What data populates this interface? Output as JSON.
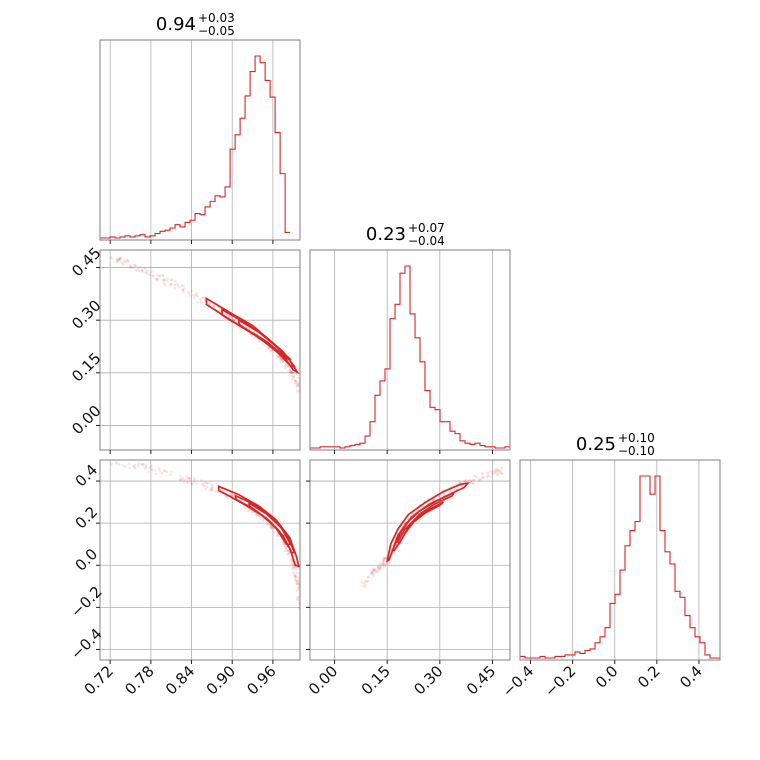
{
  "colors": {
    "series": "#d62728",
    "grid": "#b0b0b0",
    "frame": "#808080"
  },
  "chart_data": {
    "type": "corner",
    "grid": true,
    "parameters": [
      {
        "title": {
          "value": "0.94",
          "plus": "+0.03",
          "minus": "−0.05"
        },
        "range": [
          0.705,
          1.0
        ],
        "ticks": [
          0.72,
          0.78,
          0.84,
          0.9,
          0.96
        ],
        "tick_labels": [
          "0.72",
          "0.78",
          "0.84",
          "0.90",
          "0.96"
        ],
        "hist": {
          "start": 0.705,
          "bin_width": 0.00738,
          "counts": [
            0,
            0,
            1,
            0,
            1,
            2,
            1,
            2,
            3,
            1,
            2,
            4,
            6,
            7,
            9,
            12,
            10,
            14,
            16,
            22,
            21,
            28,
            33,
            38,
            37,
            46,
            80,
            93,
            108,
            128,
            150,
            164,
            158,
            142,
            127,
            95,
            58,
            5
          ]
        }
      },
      {
        "title": {
          "value": "0.23",
          "plus": "+0.07",
          "minus": "−0.04"
        },
        "range": [
          -0.07,
          0.5
        ],
        "ticks": [
          0.0,
          0.15,
          0.3,
          0.45
        ],
        "tick_labels": [
          "0.00",
          "0.15",
          "0.30",
          "0.45"
        ],
        "hist": {
          "start": -0.07,
          "bin_width": 0.01425,
          "counts": [
            0,
            0,
            1,
            1,
            1,
            1,
            0,
            1,
            2,
            3,
            4,
            10,
            22,
            44,
            56,
            66,
            108,
            120,
            146,
            152,
            112,
            92,
            72,
            48,
            34,
            32,
            22,
            22,
            14,
            12,
            6,
            4,
            3,
            4,
            2,
            1,
            1,
            0,
            0,
            1
          ]
        }
      },
      {
        "title": {
          "value": "0.25",
          "plus": "+0.10",
          "minus": "−0.10"
        },
        "range": [
          -0.45,
          0.5
        ],
        "ticks": [
          -0.4,
          -0.2,
          0.0,
          0.2,
          0.4
        ],
        "tick_labels": [
          "−0.4",
          "−0.2",
          "0.0",
          "0.2",
          "0.4"
        ],
        "hist": {
          "start": -0.45,
          "bin_width": 0.02375,
          "counts": [
            1,
            0,
            0,
            0,
            1,
            0,
            0,
            1,
            1,
            2,
            2,
            4,
            3,
            5,
            6,
            10,
            14,
            20,
            36,
            42,
            58,
            74,
            84,
            90,
            120,
            120,
            108,
            120,
            84,
            70,
            62,
            44,
            40,
            28,
            20,
            14,
            10,
            2,
            0,
            0
          ]
        }
      }
    ],
    "joint": [
      {
        "x_param": 0,
        "y_param": 1,
        "ridge": [
          [
            0.72,
            0.48
          ],
          [
            0.76,
            0.45
          ],
          [
            0.8,
            0.415
          ],
          [
            0.84,
            0.375
          ],
          [
            0.88,
            0.33
          ],
          [
            0.9,
            0.305
          ],
          [
            0.92,
            0.28
          ],
          [
            0.94,
            0.25
          ],
          [
            0.96,
            0.22
          ],
          [
            0.975,
            0.19
          ],
          [
            0.99,
            0.15
          ],
          [
            1.0,
            0.1
          ]
        ],
        "contours": [
          [
            [
              0.862,
              0.362
            ],
            [
              0.9,
              0.318
            ],
            [
              0.93,
              0.285
            ],
            [
              0.96,
              0.235
            ],
            [
              0.985,
              0.185
            ],
            [
              0.996,
              0.152
            ],
            [
              0.99,
              0.158
            ],
            [
              0.975,
              0.2
            ],
            [
              0.95,
              0.24
            ],
            [
              0.92,
              0.275
            ],
            [
              0.9,
              0.297
            ],
            [
              0.862,
              0.345
            ]
          ],
          [
            [
              0.885,
              0.33
            ],
            [
              0.92,
              0.292
            ],
            [
              0.95,
              0.252
            ],
            [
              0.975,
              0.21
            ],
            [
              0.993,
              0.165
            ],
            [
              0.985,
              0.172
            ],
            [
              0.965,
              0.212
            ],
            [
              0.94,
              0.25
            ],
            [
              0.91,
              0.285
            ],
            [
              0.885,
              0.315
            ]
          ],
          [
            [
              0.91,
              0.3
            ],
            [
              0.94,
              0.265
            ],
            [
              0.965,
              0.225
            ],
            [
              0.985,
              0.19
            ],
            [
              0.978,
              0.19
            ],
            [
              0.955,
              0.228
            ],
            [
              0.93,
              0.262
            ],
            [
              0.91,
              0.288
            ]
          ]
        ]
      },
      {
        "x_param": 0,
        "y_param": 2,
        "ridge": [
          [
            0.72,
            0.5
          ],
          [
            0.78,
            0.46
          ],
          [
            0.84,
            0.4
          ],
          [
            0.88,
            0.36
          ],
          [
            0.91,
            0.31
          ],
          [
            0.94,
            0.24
          ],
          [
            0.96,
            0.18
          ],
          [
            0.98,
            0.1
          ],
          [
            0.99,
            0.02
          ],
          [
            0.997,
            -0.08
          ],
          [
            1.0,
            -0.2
          ]
        ],
        "contours": [
          [
            [
              0.88,
              0.375
            ],
            [
              0.91,
              0.335
            ],
            [
              0.94,
              0.28
            ],
            [
              0.965,
              0.215
            ],
            [
              0.985,
              0.13
            ],
            [
              0.995,
              0.04
            ],
            [
              0.998,
              -0.005
            ],
            [
              0.993,
              0.0
            ],
            [
              0.985,
              0.08
            ],
            [
              0.97,
              0.16
            ],
            [
              0.95,
              0.225
            ],
            [
              0.92,
              0.285
            ],
            [
              0.895,
              0.33
            ],
            [
              0.88,
              0.355
            ]
          ],
          [
            [
              0.905,
              0.33
            ],
            [
              0.935,
              0.285
            ],
            [
              0.96,
              0.22
            ],
            [
              0.98,
              0.15
            ],
            [
              0.992,
              0.06
            ],
            [
              0.988,
              0.06
            ],
            [
              0.975,
              0.14
            ],
            [
              0.955,
              0.21
            ],
            [
              0.93,
              0.27
            ],
            [
              0.905,
              0.315
            ]
          ],
          [
            [
              0.925,
              0.295
            ],
            [
              0.95,
              0.245
            ],
            [
              0.972,
              0.18
            ],
            [
              0.986,
              0.1
            ],
            [
              0.98,
              0.1
            ],
            [
              0.965,
              0.175
            ],
            [
              0.945,
              0.235
            ],
            [
              0.925,
              0.282
            ]
          ]
        ]
      },
      {
        "x_param": 1,
        "y_param": 2,
        "ridge": [
          [
            0.08,
            -0.1
          ],
          [
            0.12,
            -0.02
          ],
          [
            0.15,
            0.03
          ],
          [
            0.18,
            0.13
          ],
          [
            0.21,
            0.22
          ],
          [
            0.25,
            0.28
          ],
          [
            0.3,
            0.33
          ],
          [
            0.36,
            0.38
          ],
          [
            0.42,
            0.42
          ],
          [
            0.48,
            0.45
          ]
        ],
        "contours": [
          [
            [
              0.15,
              0.02
            ],
            [
              0.16,
              0.1
            ],
            [
              0.18,
              0.17
            ],
            [
              0.21,
              0.24
            ],
            [
              0.26,
              0.3
            ],
            [
              0.31,
              0.35
            ],
            [
              0.36,
              0.385
            ],
            [
              0.38,
              0.39
            ],
            [
              0.37,
              0.37
            ],
            [
              0.32,
              0.33
            ],
            [
              0.27,
              0.29
            ],
            [
              0.22,
              0.23
            ],
            [
              0.19,
              0.16
            ],
            [
              0.17,
              0.09
            ],
            [
              0.155,
              0.025
            ]
          ],
          [
            [
              0.165,
              0.07
            ],
            [
              0.18,
              0.14
            ],
            [
              0.205,
              0.2
            ],
            [
              0.24,
              0.255
            ],
            [
              0.29,
              0.305
            ],
            [
              0.34,
              0.345
            ],
            [
              0.335,
              0.33
            ],
            [
              0.285,
              0.29
            ],
            [
              0.24,
              0.24
            ],
            [
              0.21,
              0.18
            ],
            [
              0.19,
              0.12
            ],
            [
              0.17,
              0.07
            ]
          ],
          [
            [
              0.18,
              0.11
            ],
            [
              0.2,
              0.17
            ],
            [
              0.23,
              0.22
            ],
            [
              0.27,
              0.265
            ],
            [
              0.31,
              0.3
            ],
            [
              0.3,
              0.285
            ],
            [
              0.26,
              0.25
            ],
            [
              0.225,
              0.205
            ],
            [
              0.2,
              0.15
            ],
            [
              0.185,
              0.105
            ]
          ]
        ]
      }
    ]
  }
}
